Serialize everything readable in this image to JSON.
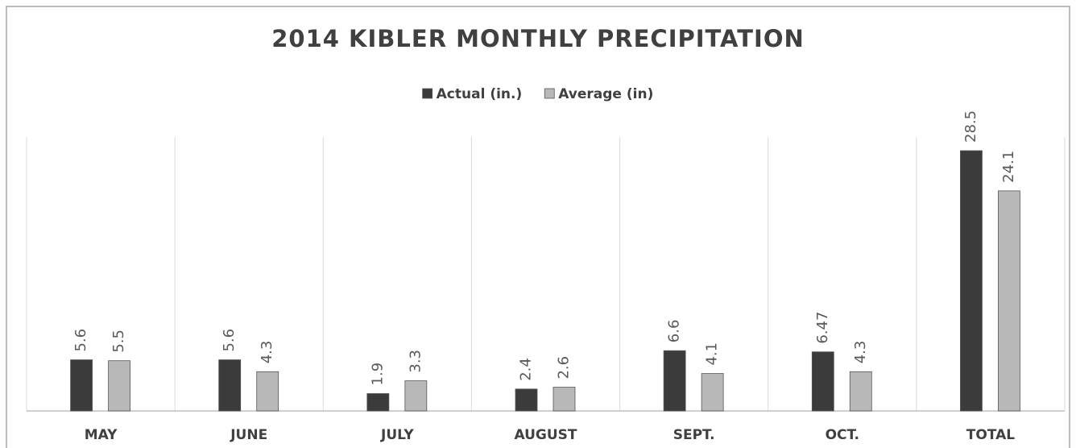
{
  "chart_data": {
    "type": "bar",
    "title": "2014 KIBLER MONTHLY PRECIPITATION",
    "categories": [
      "MAY",
      "JUNE",
      "JULY",
      "AUGUST",
      "SEPT.",
      "OCT.",
      "TOTAL"
    ],
    "series": [
      {
        "name": "Actual (in.)",
        "color": "#3b3b3b",
        "values": [
          5.6,
          5.6,
          1.9,
          2.4,
          6.6,
          6.47,
          28.5
        ]
      },
      {
        "name": "Average (in)",
        "color": "#b8b8b8",
        "values": [
          5.5,
          4.3,
          3.3,
          2.6,
          4.1,
          4.3,
          24.1
        ]
      }
    ],
    "ylim": [
      0,
      30
    ],
    "legend": "top"
  }
}
